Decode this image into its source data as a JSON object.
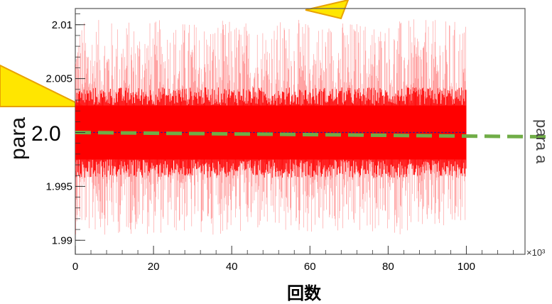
{
  "chart_data": {
    "type": "line",
    "title": "",
    "xlabel": "回数",
    "ylabel": "para",
    "right_axis_label": "para a",
    "reference_label": "2.0",
    "x_exponent_label": "×10³",
    "xlim": [
      0,
      115
    ],
    "ylim": [
      1.9887,
      2.0115
    ],
    "x_ticks": [
      0,
      20,
      40,
      60,
      80,
      100
    ],
    "x_tick_labels": [
      "0",
      "20",
      "40",
      "60",
      "80",
      "100"
    ],
    "y_ticks": [
      1.99,
      1.995,
      2.0,
      2.005,
      2.01
    ],
    "y_tick_labels": [
      "1.99",
      "1.995",
      "",
      "2.005",
      "2.01"
    ],
    "series": [
      {
        "kind": "noise-band",
        "color": "#ff0000",
        "x_range": [
          0,
          100
        ],
        "center": 2.0,
        "dense_half_width": 0.0025,
        "outer_min": 1.9905,
        "outer_max": 2.0105
      },
      {
        "kind": "reference-line",
        "color": "#70ad47",
        "style": "dashed",
        "x": [
          0,
          115
        ],
        "y": [
          2.0,
          1.9996
        ]
      },
      {
        "kind": "fit-line",
        "color": "#3a1a8a",
        "x": [
          0,
          100
        ],
        "y": [
          2.0,
          2.0
        ]
      }
    ],
    "grid": false,
    "legend": "none"
  },
  "callouts": [
    {
      "name": "left-callout",
      "color": "#ffe600",
      "outline": "#e8a200"
    },
    {
      "name": "top-callout",
      "color": "#ffe600",
      "outline": "#e8a200"
    }
  ]
}
